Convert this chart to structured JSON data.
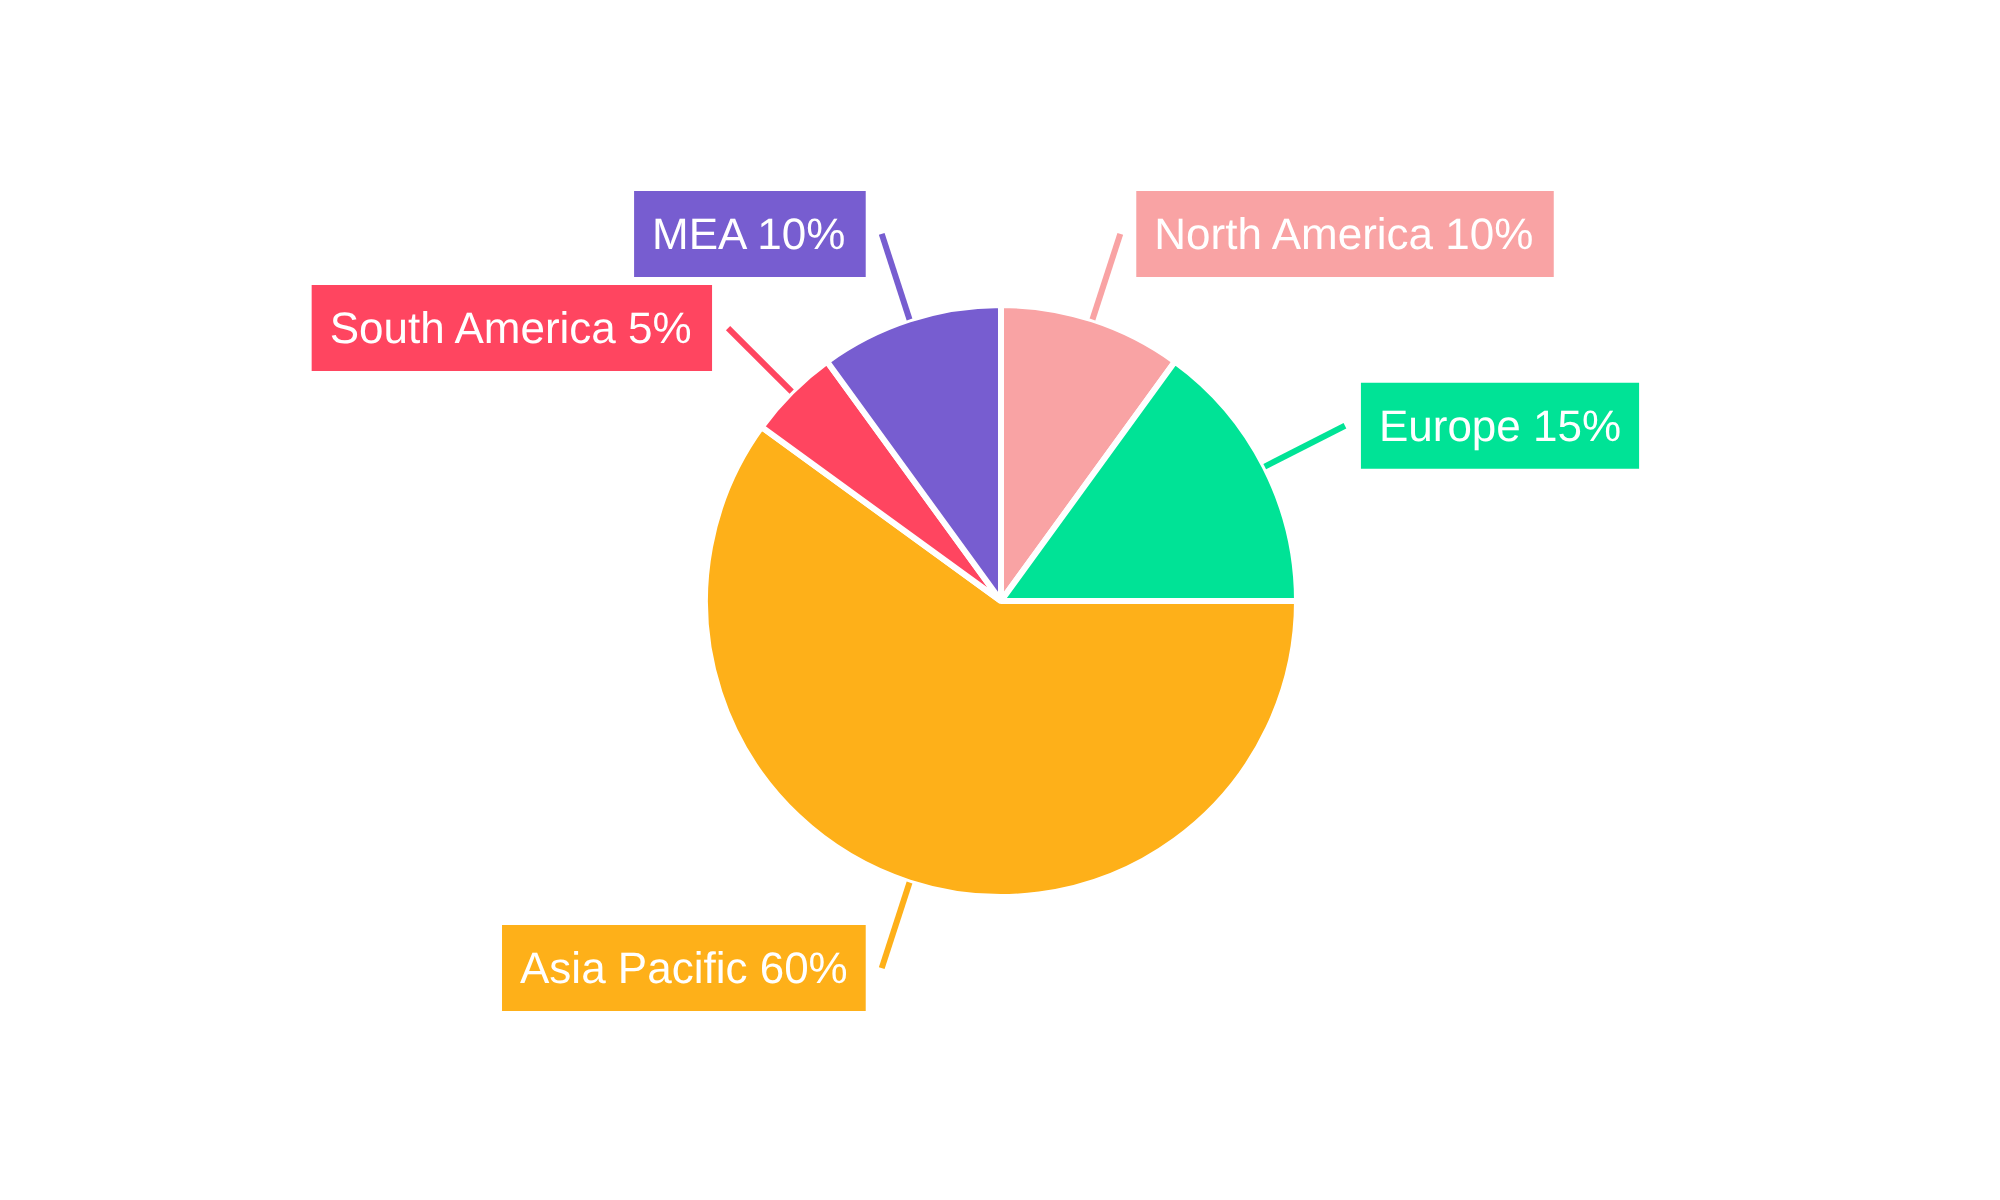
{
  "chart_data": {
    "type": "pie",
    "categories": [
      "North America",
      "Europe",
      "Asia Pacific",
      "South America",
      "MEA"
    ],
    "values": [
      10,
      15,
      60,
      5,
      10
    ],
    "value_labels": [
      "10%",
      "15%",
      "60%",
      "5%",
      "10%"
    ],
    "colors": [
      "#f9a3a4",
      "#00e396",
      "#feb019",
      "#ff4560",
      "#775dd0"
    ]
  }
}
